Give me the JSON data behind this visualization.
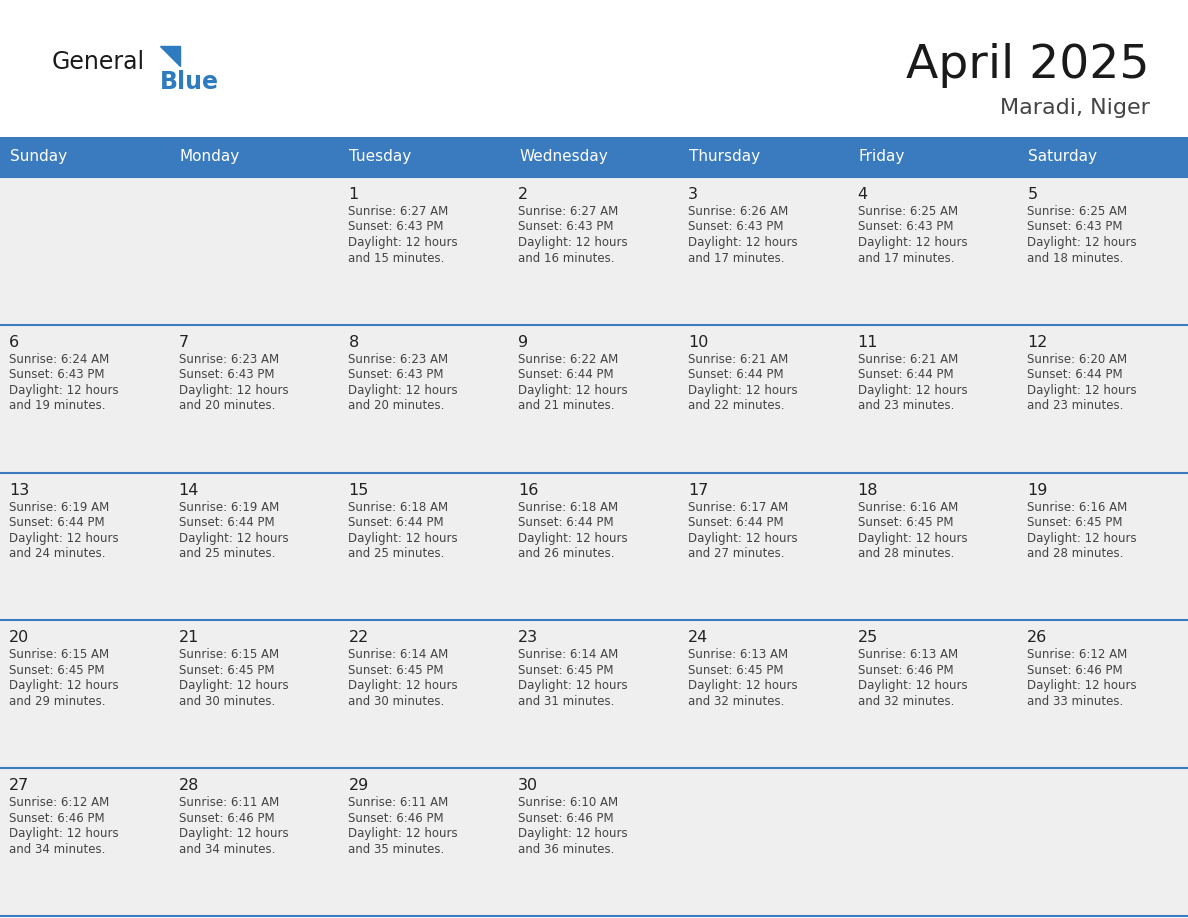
{
  "title": "April 2025",
  "subtitle": "Maradi, Niger",
  "days_of_week": [
    "Sunday",
    "Monday",
    "Tuesday",
    "Wednesday",
    "Thursday",
    "Friday",
    "Saturday"
  ],
  "header_bg": "#3a7abf",
  "header_text": "#ffffff",
  "cell_bg": "#efefef",
  "cell_bg_white": "#ffffff",
  "row_line_color": "#3a7abf",
  "text_color": "#444444",
  "day_num_color": "#222222",
  "logo_general_color": "#1a1a1a",
  "logo_blue_color": "#2e7bbf",
  "calendar_data": [
    [
      null,
      null,
      {
        "day": 1,
        "sunrise": "6:27 AM",
        "sunset": "6:43 PM",
        "daylight": "12 hours and 15 minutes."
      },
      {
        "day": 2,
        "sunrise": "6:27 AM",
        "sunset": "6:43 PM",
        "daylight": "12 hours and 16 minutes."
      },
      {
        "day": 3,
        "sunrise": "6:26 AM",
        "sunset": "6:43 PM",
        "daylight": "12 hours and 17 minutes."
      },
      {
        "day": 4,
        "sunrise": "6:25 AM",
        "sunset": "6:43 PM",
        "daylight": "12 hours and 17 minutes."
      },
      {
        "day": 5,
        "sunrise": "6:25 AM",
        "sunset": "6:43 PM",
        "daylight": "12 hours and 18 minutes."
      }
    ],
    [
      {
        "day": 6,
        "sunrise": "6:24 AM",
        "sunset": "6:43 PM",
        "daylight": "12 hours and 19 minutes."
      },
      {
        "day": 7,
        "sunrise": "6:23 AM",
        "sunset": "6:43 PM",
        "daylight": "12 hours and 20 minutes."
      },
      {
        "day": 8,
        "sunrise": "6:23 AM",
        "sunset": "6:43 PM",
        "daylight": "12 hours and 20 minutes."
      },
      {
        "day": 9,
        "sunrise": "6:22 AM",
        "sunset": "6:44 PM",
        "daylight": "12 hours and 21 minutes."
      },
      {
        "day": 10,
        "sunrise": "6:21 AM",
        "sunset": "6:44 PM",
        "daylight": "12 hours and 22 minutes."
      },
      {
        "day": 11,
        "sunrise": "6:21 AM",
        "sunset": "6:44 PM",
        "daylight": "12 hours and 23 minutes."
      },
      {
        "day": 12,
        "sunrise": "6:20 AM",
        "sunset": "6:44 PM",
        "daylight": "12 hours and 23 minutes."
      }
    ],
    [
      {
        "day": 13,
        "sunrise": "6:19 AM",
        "sunset": "6:44 PM",
        "daylight": "12 hours and 24 minutes."
      },
      {
        "day": 14,
        "sunrise": "6:19 AM",
        "sunset": "6:44 PM",
        "daylight": "12 hours and 25 minutes."
      },
      {
        "day": 15,
        "sunrise": "6:18 AM",
        "sunset": "6:44 PM",
        "daylight": "12 hours and 25 minutes."
      },
      {
        "day": 16,
        "sunrise": "6:18 AM",
        "sunset": "6:44 PM",
        "daylight": "12 hours and 26 minutes."
      },
      {
        "day": 17,
        "sunrise": "6:17 AM",
        "sunset": "6:44 PM",
        "daylight": "12 hours and 27 minutes."
      },
      {
        "day": 18,
        "sunrise": "6:16 AM",
        "sunset": "6:45 PM",
        "daylight": "12 hours and 28 minutes."
      },
      {
        "day": 19,
        "sunrise": "6:16 AM",
        "sunset": "6:45 PM",
        "daylight": "12 hours and 28 minutes."
      }
    ],
    [
      {
        "day": 20,
        "sunrise": "6:15 AM",
        "sunset": "6:45 PM",
        "daylight": "12 hours and 29 minutes."
      },
      {
        "day": 21,
        "sunrise": "6:15 AM",
        "sunset": "6:45 PM",
        "daylight": "12 hours and 30 minutes."
      },
      {
        "day": 22,
        "sunrise": "6:14 AM",
        "sunset": "6:45 PM",
        "daylight": "12 hours and 30 minutes."
      },
      {
        "day": 23,
        "sunrise": "6:14 AM",
        "sunset": "6:45 PM",
        "daylight": "12 hours and 31 minutes."
      },
      {
        "day": 24,
        "sunrise": "6:13 AM",
        "sunset": "6:45 PM",
        "daylight": "12 hours and 32 minutes."
      },
      {
        "day": 25,
        "sunrise": "6:13 AM",
        "sunset": "6:46 PM",
        "daylight": "12 hours and 32 minutes."
      },
      {
        "day": 26,
        "sunrise": "6:12 AM",
        "sunset": "6:46 PM",
        "daylight": "12 hours and 33 minutes."
      }
    ],
    [
      {
        "day": 27,
        "sunrise": "6:12 AM",
        "sunset": "6:46 PM",
        "daylight": "12 hours and 34 minutes."
      },
      {
        "day": 28,
        "sunrise": "6:11 AM",
        "sunset": "6:46 PM",
        "daylight": "12 hours and 34 minutes."
      },
      {
        "day": 29,
        "sunrise": "6:11 AM",
        "sunset": "6:46 PM",
        "daylight": "12 hours and 35 minutes."
      },
      {
        "day": 30,
        "sunrise": "6:10 AM",
        "sunset": "6:46 PM",
        "daylight": "12 hours and 36 minutes."
      },
      null,
      null,
      null
    ]
  ]
}
